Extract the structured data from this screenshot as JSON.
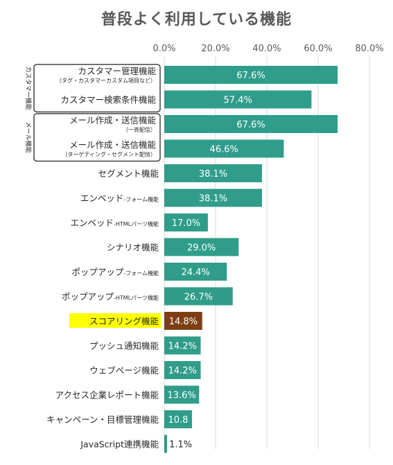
{
  "chart_data": {
    "type": "bar",
    "orientation": "horizontal",
    "title": "普段よく利用している機能",
    "xlabel": "",
    "ylabel": "",
    "xlim": [
      0,
      80
    ],
    "x_ticks": [
      "0.0%",
      "20.0%",
      "40.0%",
      "60.0%",
      "80.0%"
    ],
    "grid": true,
    "bar_color": "#2f9d8a",
    "highlight_color": "#7e3e14",
    "highlight_label_bg": "#ffff00",
    "highlight_label_color": "#ff0000",
    "groups": [
      {
        "label": "カスタマー機能",
        "rows": [
          0,
          1
        ]
      },
      {
        "label": "メール機能",
        "rows": [
          2,
          3
        ]
      }
    ],
    "categories": [
      {
        "label": "カスタマー管理機能",
        "sub": "（タグ・カスタマーカスタム項目など）"
      },
      {
        "label": "カスタマー検索条件機能",
        "sub": ""
      },
      {
        "label": "メール作成・送信機能",
        "sub": "（一斉配信）"
      },
      {
        "label": "メール作成・送信機能",
        "sub": "（ターゲティング・セグメント配信）"
      },
      {
        "label": "セグメント機能",
        "sub": ""
      },
      {
        "label": "エンベッド",
        "sub": "-フォーム機能"
      },
      {
        "label": "エンベッド",
        "sub": "-HTMLパーツ機能"
      },
      {
        "label": "シナリオ機能",
        "sub": ""
      },
      {
        "label": "ポップアップ",
        "sub": "-フォーム機能"
      },
      {
        "label": "ポップアップ",
        "sub": "-HTMLパーツ機能"
      },
      {
        "label": "スコアリング機能",
        "sub": "",
        "highlight": true
      },
      {
        "label": "プッシュ通知機能",
        "sub": ""
      },
      {
        "label": "ウェブページ機能",
        "sub": ""
      },
      {
        "label": "アクセス企業レポート機能",
        "sub": ""
      },
      {
        "label": "キャンペーン・目標管理機能",
        "sub": ""
      },
      {
        "label": "JavaScript連携機能",
        "sub": ""
      }
    ],
    "values": [
      67.6,
      57.4,
      67.6,
      46.6,
      38.1,
      38.1,
      17.0,
      29.0,
      24.4,
      26.7,
      14.8,
      14.2,
      14.2,
      13.6,
      10.8,
      1.1
    ],
    "value_labels": [
      "67.6%",
      "57.4%",
      "67.6%",
      "46.6%",
      "38.1%",
      "38.1%",
      "17.0%",
      "29.0%",
      "24.4%",
      "26.7%",
      "14.8%",
      "14.2%",
      "14.2%",
      "13.6%",
      "10.8",
      "1.1%"
    ]
  }
}
